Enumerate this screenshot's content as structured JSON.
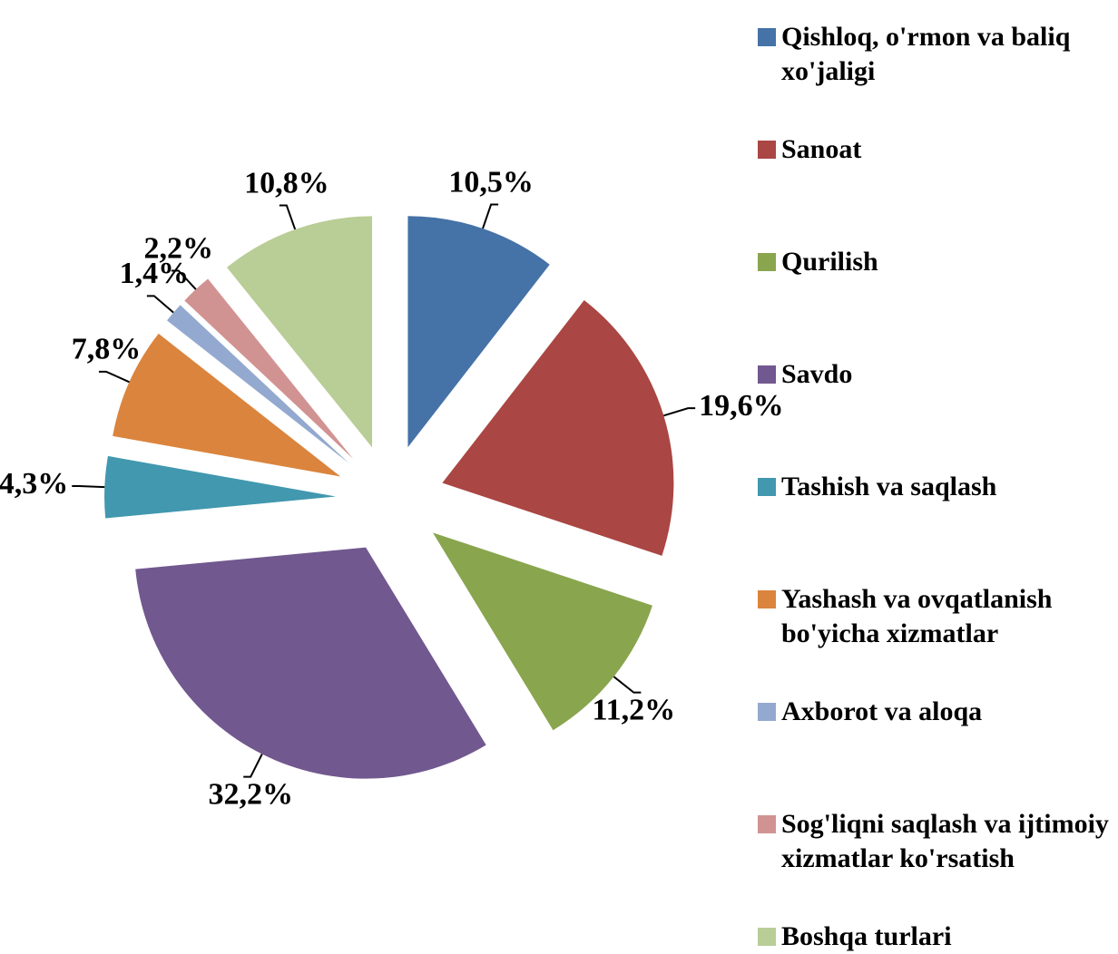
{
  "chart_data": {
    "type": "pie",
    "categories": [
      "Qishloq, o'rmon va baliq xo'jaligi",
      "Sanoat",
      "Qurilish",
      "Savdo",
      "Tashish va saqlash",
      "Yashash va ovqatlanish bo'yicha xizmatlar",
      "Axborot va aloqa",
      "Sog'liqni saqlash va ijtimoiy xizmatlar ko'rsatish",
      "Boshqa turlari"
    ],
    "values": [
      10.5,
      19.6,
      11.2,
      32.2,
      4.3,
      7.8,
      1.4,
      2.2,
      10.8
    ],
    "value_labels": [
      "10,5%",
      "19,6%",
      "11,2%",
      "32,2%",
      "4,3%",
      "7,8%",
      "1,4%",
      "2,2%",
      "10,8%"
    ],
    "colors": [
      "#4572a7",
      "#aa4643",
      "#89a54e",
      "#71588f",
      "#4198af",
      "#db843d",
      "#93a9cf",
      "#d19392",
      "#b9cd96"
    ],
    "legend": "right"
  }
}
